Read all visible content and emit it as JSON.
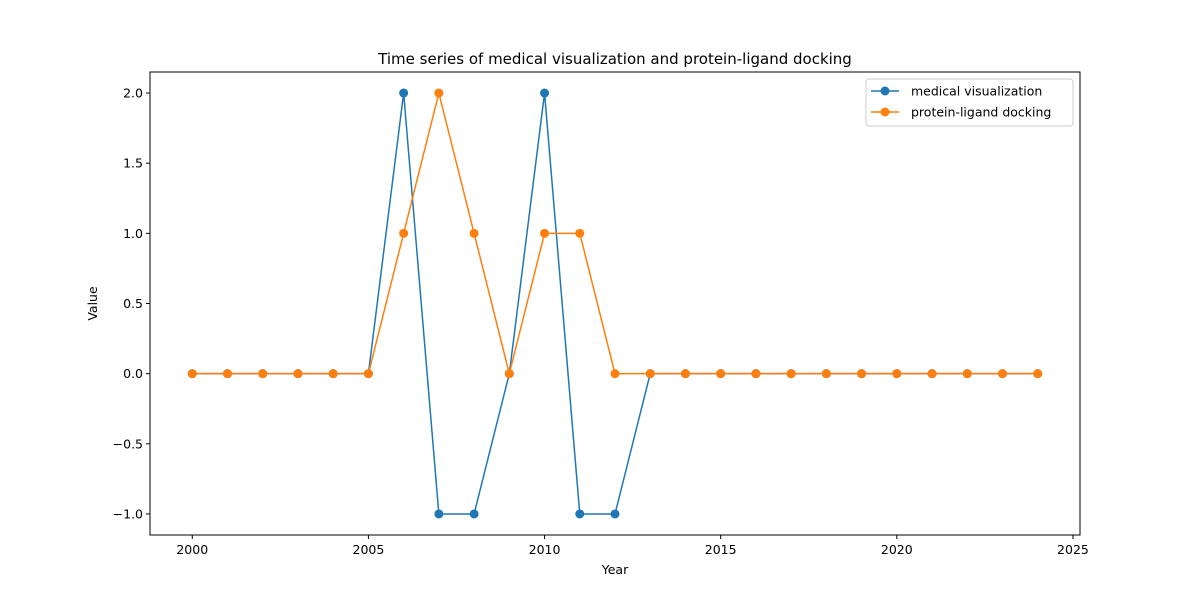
{
  "chart_data": {
    "type": "line",
    "title": "Time series of medical visualization and protein-ligand docking",
    "xlabel": "Year",
    "ylabel": "Value",
    "x": [
      2000,
      2001,
      2002,
      2003,
      2004,
      2005,
      2006,
      2007,
      2008,
      2009,
      2010,
      2011,
      2012,
      2013,
      2014,
      2015,
      2016,
      2017,
      2018,
      2019,
      2020,
      2021,
      2022,
      2023,
      2024
    ],
    "xlim": [
      1998.8,
      2025.2
    ],
    "ylim": [
      -1.15,
      2.15
    ],
    "xticks": [
      2000,
      2005,
      2010,
      2015,
      2020,
      2025
    ],
    "yticks": [
      -1.0,
      -0.5,
      0.0,
      0.5,
      1.0,
      1.5,
      2.0
    ],
    "xtick_labels": [
      "2000",
      "2005",
      "2010",
      "2015",
      "2020",
      "2025"
    ],
    "ytick_labels": [
      "−1.0",
      "−0.5",
      "0.0",
      "0.5",
      "1.0",
      "1.5",
      "2.0"
    ],
    "grid": false,
    "legend_position": "top-right",
    "series": [
      {
        "name": "medical visualization",
        "color": "#1f77b4",
        "marker": "circle",
        "values": [
          0,
          0,
          0,
          0,
          0,
          0,
          2,
          -1,
          -1,
          0,
          2,
          -1,
          -1,
          0,
          0,
          0,
          0,
          0,
          0,
          0,
          0,
          0,
          0,
          0,
          0
        ]
      },
      {
        "name": "protein-ligand docking",
        "color": "#ff7f0e",
        "marker": "circle",
        "values": [
          0,
          0,
          0,
          0,
          0,
          0,
          1,
          2,
          1,
          0,
          1,
          1,
          0,
          0,
          0,
          0,
          0,
          0,
          0,
          0,
          0,
          0,
          0,
          0,
          0
        ]
      }
    ]
  }
}
